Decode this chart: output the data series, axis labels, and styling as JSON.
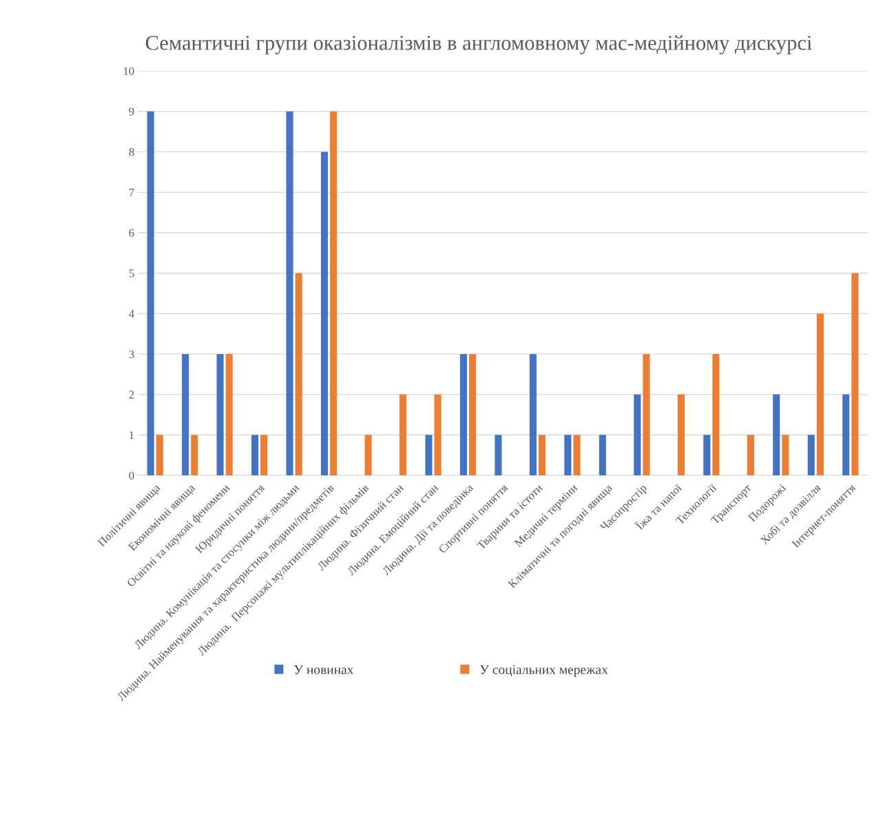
{
  "chart_data": {
    "type": "bar",
    "title": "Семантичні групи оказіоналізмів в англомовному мас-медійному дискурсі",
    "categories": [
      "Політичні явища",
      "Економічні явища",
      "Освітні та наукові феномени",
      "Юридичні поняття",
      "Людина. Комунікація та стосунки між людьми",
      "Людина. Найменування та характеристика людини/предметів",
      "Людина.  Персонажі мультиплікаційних фільмів",
      "Людина. Фізичний стан",
      "Людина. Емоційний стан",
      "Людина. Дії та поведінка",
      "Спортивні поняття",
      "Тварини та істоти",
      "Медичні терміни",
      "Кліматичні та погодні явища",
      "Часопростір",
      "Їжа та напої",
      "Технології",
      "Транспорт",
      "Подорожі",
      "Хобі та дозвілля",
      "Інтернет-поняття"
    ],
    "series": [
      {
        "name": "У новинах",
        "color": "#4472c4",
        "values": [
          9,
          3,
          3,
          1,
          9,
          8,
          0,
          0,
          1,
          3,
          1,
          3,
          1,
          1,
          2,
          0,
          1,
          0,
          2,
          1,
          2
        ]
      },
      {
        "name": "У соціальних мережах",
        "color": "#ed7d31",
        "values": [
          1,
          1,
          3,
          1,
          5,
          9,
          1,
          2,
          2,
          3,
          0,
          1,
          1,
          0,
          3,
          2,
          3,
          1,
          1,
          4,
          5
        ]
      }
    ],
    "ylim": [
      0,
      10
    ],
    "yticks": [
      0,
      1,
      2,
      3,
      4,
      5,
      6,
      7,
      8,
      9,
      10
    ],
    "grid": "y",
    "legend": "bottom"
  }
}
